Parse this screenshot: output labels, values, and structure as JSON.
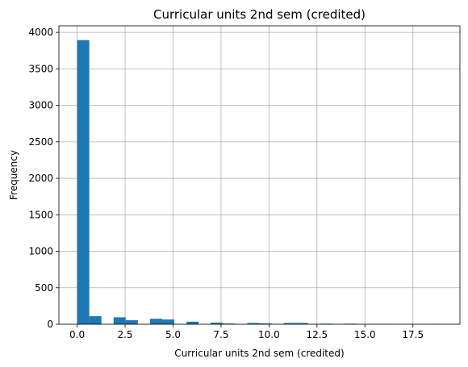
{
  "chart_data": {
    "type": "bar",
    "title": "Curricular units 2nd sem (credited)",
    "xlabel": "Curricular units 2nd sem (credited)",
    "ylabel": "Frequency",
    "xlim": [
      -0.95,
      19.95
    ],
    "ylim": [
      0,
      4090
    ],
    "grid": true,
    "bar_color": "#1f77b4",
    "bins": {
      "start": 0,
      "width": 0.6333,
      "values": [
        3894,
        110,
        0,
        95,
        55,
        0,
        75,
        65,
        0,
        35,
        0,
        22,
        10,
        0,
        18,
        12,
        0,
        18,
        18,
        0,
        8,
        0,
        8,
        0,
        3,
        3,
        0,
        2,
        0,
        2
      ]
    },
    "xticks": [
      {
        "value": 0,
        "label": "0.0"
      },
      {
        "value": 2.5,
        "label": "2.5"
      },
      {
        "value": 5,
        "label": "5.0"
      },
      {
        "value": 7.5,
        "label": "7.5"
      },
      {
        "value": 10,
        "label": "10.0"
      },
      {
        "value": 12.5,
        "label": "12.5"
      },
      {
        "value": 15,
        "label": "15.0"
      },
      {
        "value": 17.5,
        "label": "17.5"
      }
    ],
    "yticks": [
      {
        "value": 0,
        "label": "0"
      },
      {
        "value": 500,
        "label": "500"
      },
      {
        "value": 1000,
        "label": "1000"
      },
      {
        "value": 1500,
        "label": "1500"
      },
      {
        "value": 2000,
        "label": "2000"
      },
      {
        "value": 2500,
        "label": "2500"
      },
      {
        "value": 3000,
        "label": "3000"
      },
      {
        "value": 3500,
        "label": "3500"
      },
      {
        "value": 4000,
        "label": "4000"
      }
    ]
  }
}
